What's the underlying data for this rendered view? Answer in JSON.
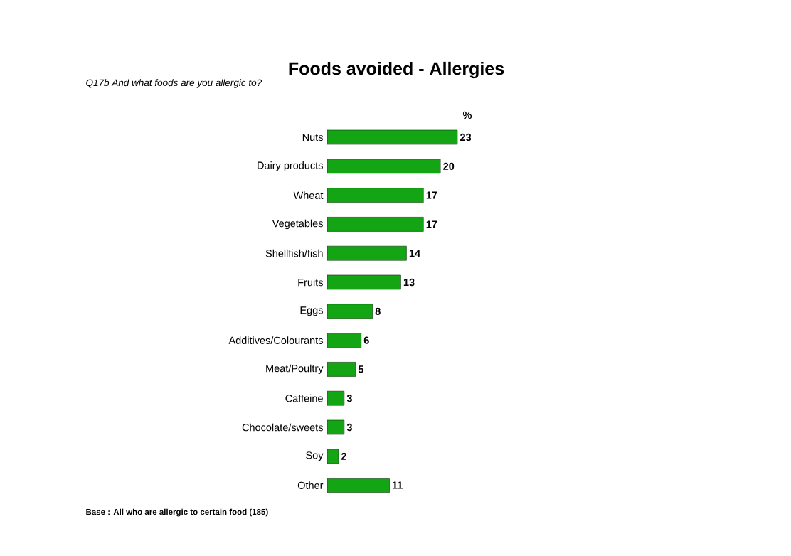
{
  "chart_data": {
    "type": "bar",
    "orientation": "horizontal",
    "title": "Foods avoided - Allergies",
    "subtitle": "Q17b And what foods are you allergic to?",
    "xlabel": "%",
    "categories": [
      "Nuts",
      "Dairy products",
      "Wheat",
      "Vegetables",
      "Shellfish/fish",
      "Fruits",
      "Eggs",
      "Additives/Colourants",
      "Meat/Poultry",
      "Caffeine",
      "Chocolate/sweets",
      "Soy",
      "Other"
    ],
    "values": [
      23,
      20,
      17,
      17,
      14,
      13,
      8,
      6,
      5,
      3,
      3,
      2,
      11
    ],
    "color": "#14a514",
    "data_labels": true,
    "annotations": [
      "Base : All who are allergic to certain food (185)"
    ]
  }
}
